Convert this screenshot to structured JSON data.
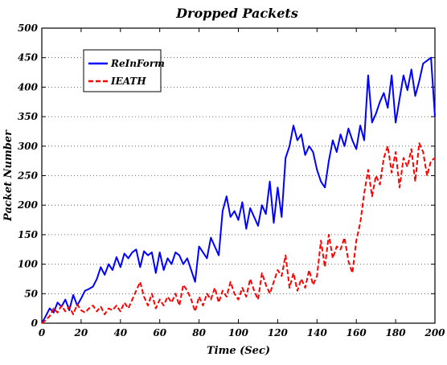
{
  "chart_data": {
    "type": "line",
    "title": "Dropped Packets",
    "xlabel": "Time (Sec)",
    "ylabel": "Packet  Number",
    "xlim": [
      0,
      200
    ],
    "ylim": [
      0,
      500
    ],
    "xticks": [
      0,
      20,
      40,
      60,
      80,
      100,
      120,
      140,
      160,
      180,
      200
    ],
    "yticks": [
      0,
      50,
      100,
      150,
      200,
      250,
      300,
      350,
      400,
      450,
      500
    ],
    "grid": "horizontal dotted",
    "legend_position": "top-left",
    "series": [
      {
        "name": "ReInForm",
        "color": "#0000ff",
        "style": "solid",
        "x": [
          0,
          2,
          4,
          6,
          8,
          10,
          12,
          14,
          16,
          18,
          20,
          22,
          24,
          26,
          28,
          30,
          32,
          34,
          36,
          38,
          40,
          42,
          44,
          46,
          48,
          50,
          52,
          54,
          56,
          58,
          60,
          62,
          64,
          66,
          68,
          70,
          72,
          74,
          76,
          78,
          80,
          82,
          84,
          86,
          88,
          90,
          92,
          94,
          96,
          98,
          100,
          102,
          104,
          106,
          108,
          110,
          112,
          114,
          116,
          118,
          120,
          122,
          124,
          126,
          128,
          130,
          132,
          134,
          136,
          138,
          140,
          142,
          144,
          146,
          148,
          150,
          152,
          154,
          156,
          158,
          160,
          162,
          164,
          166,
          168,
          170,
          172,
          174,
          176,
          178,
          180,
          182,
          184,
          186,
          188,
          190,
          192,
          194,
          196,
          198,
          200
        ],
        "values": [
          0,
          12,
          25,
          18,
          35,
          28,
          40,
          22,
          48,
          30,
          42,
          55,
          58,
          62,
          75,
          95,
          82,
          100,
          90,
          112,
          95,
          118,
          110,
          120,
          125,
          95,
          122,
          115,
          120,
          85,
          120,
          90,
          110,
          100,
          120,
          115,
          100,
          110,
          90,
          70,
          130,
          120,
          110,
          145,
          130,
          115,
          190,
          215,
          180,
          190,
          175,
          205,
          160,
          195,
          180,
          165,
          200,
          185,
          240,
          170,
          230,
          180,
          280,
          300,
          335,
          310,
          320,
          285,
          300,
          290,
          260,
          240,
          230,
          275,
          310,
          290,
          320,
          300,
          330,
          310,
          295,
          335,
          310,
          420,
          340,
          355,
          375,
          390,
          365,
          420,
          340,
          380,
          420,
          395,
          430,
          385,
          410,
          440,
          445,
          450,
          350
        ]
      },
      {
        "name": "IEATH",
        "color": "#ff0000",
        "style": "dashed",
        "x": [
          0,
          2,
          4,
          6,
          8,
          10,
          12,
          14,
          16,
          18,
          20,
          22,
          24,
          26,
          28,
          30,
          32,
          34,
          36,
          38,
          40,
          42,
          44,
          46,
          48,
          50,
          52,
          54,
          56,
          58,
          60,
          62,
          64,
          66,
          68,
          70,
          72,
          74,
          76,
          78,
          80,
          82,
          84,
          86,
          88,
          90,
          92,
          94,
          96,
          98,
          100,
          102,
          104,
          106,
          108,
          110,
          112,
          114,
          116,
          118,
          120,
          122,
          124,
          126,
          128,
          130,
          132,
          134,
          136,
          138,
          140,
          142,
          144,
          146,
          148,
          150,
          152,
          154,
          156,
          158,
          160,
          162,
          164,
          166,
          168,
          170,
          172,
          174,
          176,
          178,
          180,
          182,
          184,
          186,
          188,
          190,
          192,
          194,
          196,
          198,
          200
        ],
        "values": [
          0,
          5,
          12,
          25,
          18,
          30,
          20,
          28,
          15,
          32,
          22,
          18,
          25,
          30,
          20,
          28,
          15,
          25,
          22,
          30,
          20,
          35,
          25,
          40,
          55,
          70,
          45,
          30,
          50,
          25,
          40,
          30,
          45,
          35,
          50,
          30,
          65,
          55,
          40,
          20,
          45,
          30,
          50,
          40,
          60,
          35,
          55,
          45,
          70,
          50,
          40,
          60,
          45,
          75,
          55,
          40,
          85,
          65,
          50,
          70,
          90,
          80,
          115,
          60,
          85,
          55,
          75,
          60,
          90,
          65,
          80,
          140,
          95,
          150,
          110,
          130,
          125,
          145,
          105,
          85,
          140,
          170,
          220,
          260,
          215,
          250,
          235,
          280,
          300,
          255,
          290,
          230,
          280,
          265,
          295,
          240,
          305,
          290,
          250,
          275,
          280
        ]
      }
    ]
  }
}
